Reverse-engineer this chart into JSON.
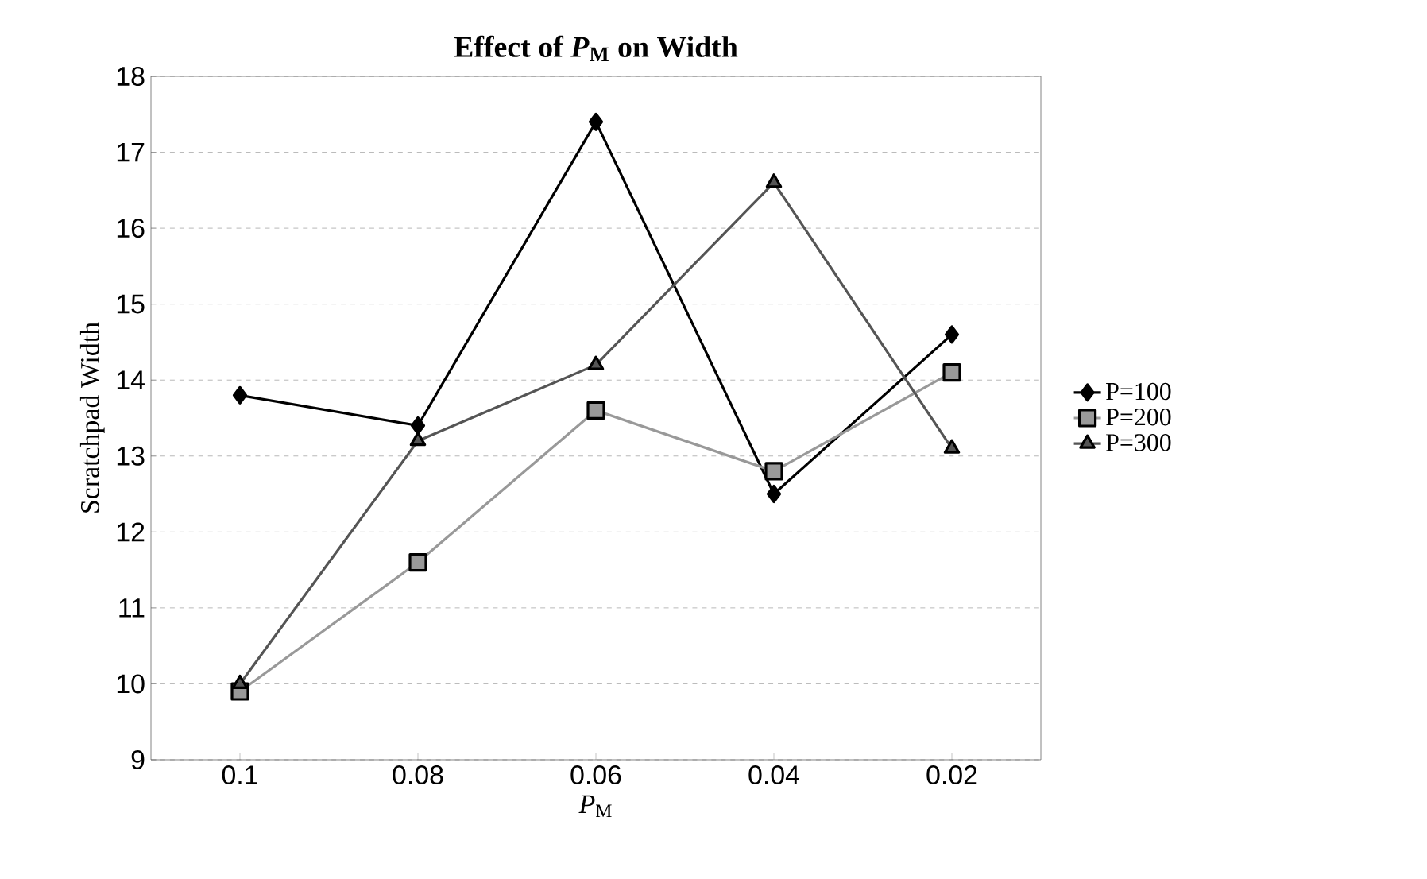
{
  "chart_data": {
    "type": "line",
    "title": "Effect of *P*$_{M}$ on Width",
    "xlabel": "*P*$_{M}$",
    "ylabel": "Scratchpad Width",
    "categories": [
      "0.1",
      "0.08",
      "0.06",
      "0.04",
      "0.02"
    ],
    "series": [
      {
        "name": "P=100",
        "color": "#000000",
        "marker": "diamond",
        "values": [
          13.8,
          13.4,
          17.4,
          12.5,
          14.6
        ]
      },
      {
        "name": "P=200",
        "color": "#999999",
        "marker": "square",
        "values": [
          9.9,
          11.6,
          13.6,
          12.8,
          14.1
        ]
      },
      {
        "name": "P=300",
        "color": "#555555",
        "marker": "triangle",
        "values": [
          10.0,
          13.2,
          14.2,
          16.6,
          13.1
        ]
      }
    ],
    "ylim": [
      9,
      18
    ],
    "yticks": [
      9,
      10,
      11,
      12,
      13,
      14,
      15,
      16,
      17,
      18
    ],
    "grid": "y",
    "legend": "right",
    "line_style": "solid"
  }
}
